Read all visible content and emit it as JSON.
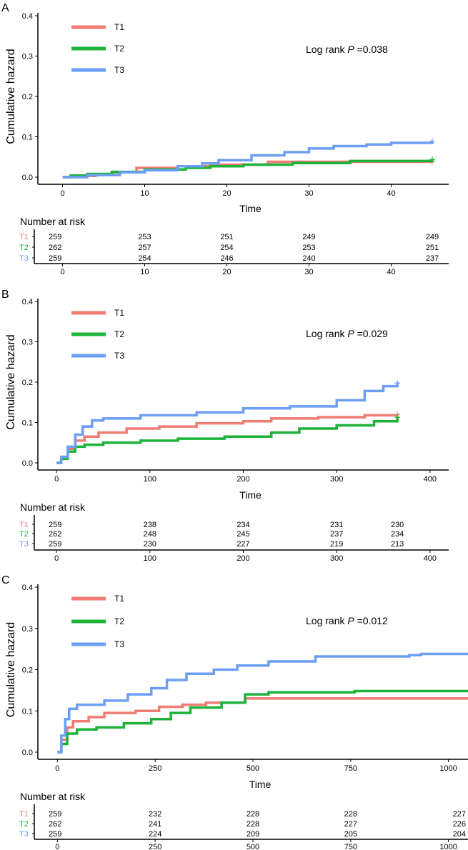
{
  "chart_data": [
    {
      "panel_label": "A",
      "type": "line",
      "title": "",
      "ylabel": "Cumulative hazard",
      "xlabel": "Time",
      "xlim": [
        -3,
        47
      ],
      "ylim": [
        0,
        0.4
      ],
      "xticks": [
        0,
        10,
        20,
        30,
        40
      ],
      "yticks": [
        0.0,
        0.1,
        0.2,
        0.3,
        0.4
      ],
      "ytick_labels": [
        "0.0",
        "0.1",
        "0.2",
        "0.3",
        "0.4"
      ],
      "annotation": {
        "prefix": "Log rank ",
        "p": "P",
        "value": " =0.038"
      },
      "legend_position": "top-left",
      "series": [
        {
          "name": "T1",
          "color": "#F07C73",
          "end_mark": true,
          "points": [
            [
              0,
              0
            ],
            [
              2,
              0.003
            ],
            [
              4,
              0.007
            ],
            [
              6,
              0.012
            ],
            [
              9,
              0.023
            ],
            [
              14,
              0.027
            ],
            [
              18,
              0.031
            ],
            [
              25,
              0.038
            ],
            [
              45,
              0.038
            ]
          ]
        },
        {
          "name": "T2",
          "color": "#1DB33A",
          "end_mark": true,
          "points": [
            [
              0,
              0
            ],
            [
              1,
              0.004
            ],
            [
              3,
              0.008
            ],
            [
              6,
              0.013
            ],
            [
              10,
              0.019
            ],
            [
              15,
              0.023
            ],
            [
              18,
              0.027
            ],
            [
              22,
              0.031
            ],
            [
              28,
              0.035
            ],
            [
              35,
              0.04
            ],
            [
              45,
              0.044
            ]
          ]
        },
        {
          "name": "T3",
          "color": "#6B9EF4",
          "end_mark": true,
          "points": [
            [
              0,
              0
            ],
            [
              3,
              0.005
            ],
            [
              7,
              0.012
            ],
            [
              10,
              0.017
            ],
            [
              14,
              0.027
            ],
            [
              17,
              0.034
            ],
            [
              19,
              0.042
            ],
            [
              23,
              0.054
            ],
            [
              27,
              0.062
            ],
            [
              30,
              0.071
            ],
            [
              33,
              0.077
            ],
            [
              37,
              0.081
            ],
            [
              40,
              0.085
            ],
            [
              45,
              0.089
            ]
          ]
        }
      ],
      "risk_table": {
        "title": "Number at risk",
        "times": [
          0,
          10,
          20,
          30,
          45
        ],
        "xticks": [
          0,
          10,
          20,
          30,
          40
        ],
        "rows": [
          {
            "name": "T1",
            "values": [
              "259",
              "253",
              "251",
              "249",
              "249"
            ]
          },
          {
            "name": "T2",
            "values": [
              "262",
              "257",
              "254",
              "253",
              "251"
            ]
          },
          {
            "name": "T3",
            "values": [
              "259",
              "254",
              "246",
              "240",
              "237"
            ]
          }
        ]
      }
    },
    {
      "panel_label": "B",
      "type": "line",
      "title": "",
      "ylabel": "Cumulative hazard",
      "xlabel": "Time",
      "xlim": [
        -20,
        420
      ],
      "ylim": [
        0,
        0.4
      ],
      "xticks": [
        0,
        100,
        200,
        300,
        400
      ],
      "yticks": [
        0.0,
        0.1,
        0.2,
        0.3,
        0.4
      ],
      "ytick_labels": [
        "0.0",
        "0.1",
        "0.2",
        "0.3",
        "0.4"
      ],
      "annotation": {
        "prefix": "Log rank ",
        "p": "P",
        "value": " =0.029"
      },
      "legend_position": "top-left",
      "series": [
        {
          "name": "T1",
          "color": "#F07C73",
          "end_mark": true,
          "points": [
            [
              0,
              0
            ],
            [
              5,
              0.01
            ],
            [
              12,
              0.035
            ],
            [
              20,
              0.055
            ],
            [
              30,
              0.065
            ],
            [
              45,
              0.075
            ],
            [
              75,
              0.085
            ],
            [
              110,
              0.09
            ],
            [
              150,
              0.098
            ],
            [
              200,
              0.103
            ],
            [
              230,
              0.11
            ],
            [
              280,
              0.113
            ],
            [
              330,
              0.118
            ],
            [
              365,
              0.12
            ]
          ]
        },
        {
          "name": "T2",
          "color": "#1DB33A",
          "end_mark": true,
          "points": [
            [
              0,
              0
            ],
            [
              5,
              0.01
            ],
            [
              12,
              0.028
            ],
            [
              20,
              0.04
            ],
            [
              30,
              0.045
            ],
            [
              50,
              0.05
            ],
            [
              90,
              0.055
            ],
            [
              130,
              0.06
            ],
            [
              180,
              0.065
            ],
            [
              230,
              0.075
            ],
            [
              260,
              0.085
            ],
            [
              300,
              0.093
            ],
            [
              340,
              0.103
            ],
            [
              365,
              0.113
            ]
          ]
        },
        {
          "name": "T3",
          "color": "#6B9EF4",
          "end_mark": true,
          "points": [
            [
              0,
              0
            ],
            [
              5,
              0.015
            ],
            [
              12,
              0.04
            ],
            [
              20,
              0.07
            ],
            [
              28,
              0.09
            ],
            [
              38,
              0.105
            ],
            [
              50,
              0.11
            ],
            [
              90,
              0.118
            ],
            [
              150,
              0.125
            ],
            [
              200,
              0.135
            ],
            [
              250,
              0.14
            ],
            [
              300,
              0.155
            ],
            [
              330,
              0.178
            ],
            [
              350,
              0.19
            ],
            [
              365,
              0.198
            ]
          ]
        }
      ],
      "risk_table": {
        "title": "Number at risk",
        "times": [
          0,
          100,
          200,
          300,
          365
        ],
        "xticks": [
          0,
          100,
          200,
          300,
          400
        ],
        "rows": [
          {
            "name": "T1",
            "values": [
              "259",
              "238",
              "234",
              "231",
              "230"
            ]
          },
          {
            "name": "T2",
            "values": [
              "262",
              "248",
              "245",
              "237",
              "234"
            ]
          },
          {
            "name": "T3",
            "values": [
              "259",
              "230",
              "227",
              "219",
              "213"
            ]
          }
        ]
      }
    },
    {
      "panel_label": "C",
      "type": "line",
      "title": "",
      "ylabel": "Cumulative hazard",
      "xlabel": "Time",
      "xlim": [
        -50,
        1050
      ],
      "ylim": [
        0,
        0.4
      ],
      "xticks": [
        0,
        250,
        500,
        750,
        1000
      ],
      "yticks": [
        0.0,
        0.1,
        0.2,
        0.3,
        0.4
      ],
      "ytick_labels": [
        "0.0",
        "0.1",
        "0.2",
        "0.3",
        "0.4"
      ],
      "annotation": {
        "prefix": "Log rank ",
        "p": "P",
        "value": " =0.012"
      },
      "legend_position": "top-left",
      "series": [
        {
          "name": "T1",
          "color": "#F07C73",
          "end_mark": false,
          "points": [
            [
              0,
              0
            ],
            [
              10,
              0.03
            ],
            [
              25,
              0.06
            ],
            [
              40,
              0.075
            ],
            [
              80,
              0.085
            ],
            [
              120,
              0.095
            ],
            [
              200,
              0.1
            ],
            [
              260,
              0.11
            ],
            [
              320,
              0.115
            ],
            [
              380,
              0.12
            ],
            [
              480,
              0.13
            ],
            [
              1050,
              0.13
            ]
          ]
        },
        {
          "name": "T2",
          "color": "#1DB33A",
          "end_mark": false,
          "points": [
            [
              0,
              0
            ],
            [
              10,
              0.02
            ],
            [
              25,
              0.045
            ],
            [
              50,
              0.055
            ],
            [
              100,
              0.06
            ],
            [
              170,
              0.07
            ],
            [
              240,
              0.08
            ],
            [
              290,
              0.095
            ],
            [
              340,
              0.108
            ],
            [
              420,
              0.12
            ],
            [
              480,
              0.14
            ],
            [
              540,
              0.145
            ],
            [
              760,
              0.148
            ],
            [
              1050,
              0.148
            ]
          ]
        },
        {
          "name": "T3",
          "color": "#6B9EF4",
          "end_mark": false,
          "points": [
            [
              0,
              0
            ],
            [
              10,
              0.04
            ],
            [
              20,
              0.08
            ],
            [
              30,
              0.105
            ],
            [
              50,
              0.115
            ],
            [
              120,
              0.125
            ],
            [
              180,
              0.14
            ],
            [
              240,
              0.155
            ],
            [
              280,
              0.175
            ],
            [
              330,
              0.19
            ],
            [
              400,
              0.2
            ],
            [
              460,
              0.21
            ],
            [
              540,
              0.22
            ],
            [
              660,
              0.232
            ],
            [
              900,
              0.235
            ],
            [
              930,
              0.238
            ],
            [
              1050,
              0.238
            ]
          ]
        }
      ],
      "risk_table": {
        "title": "Number at risk",
        "times": [
          0,
          250,
          500,
          750,
          1000
        ],
        "xticks": [
          0,
          250,
          500,
          750,
          1000
        ],
        "rows": [
          {
            "name": "T1",
            "values": [
              "259",
              "232",
              "228",
              "228",
              "227"
            ]
          },
          {
            "name": "T2",
            "values": [
              "262",
              "241",
              "228",
              "227",
              "226"
            ]
          },
          {
            "name": "T3",
            "values": [
              "259",
              "224",
              "209",
              "205",
              "204"
            ]
          }
        ]
      }
    }
  ]
}
